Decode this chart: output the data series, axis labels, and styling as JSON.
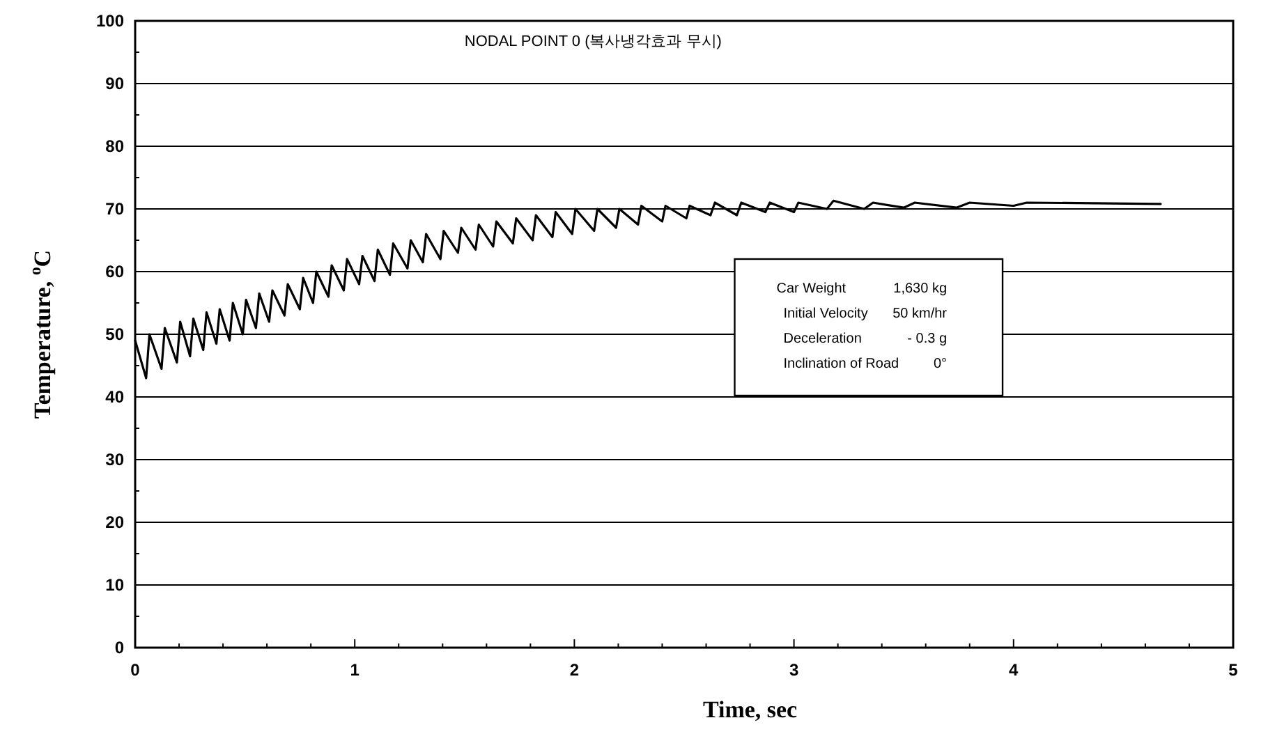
{
  "chart_data": {
    "type": "line",
    "title": "NODAL POINT 0 (복사냉각효과 무시)",
    "xlabel": "Time, sec",
    "ylabel": "Temperature, $^{o}$C",
    "xlim": [
      0,
      5
    ],
    "ylim": [
      0,
      100
    ],
    "xticks": [
      0,
      {
        "value": 0.2,
        "label": null
      },
      {
        "value": 0.4,
        "label": null
      },
      {
        "value": 0.6,
        "label": null
      },
      {
        "value": 0.8,
        "label": null
      },
      1,
      {
        "value": 1.2,
        "label": null
      },
      {
        "value": 1.4,
        "label": null
      },
      {
        "value": 1.6,
        "label": null
      },
      {
        "value": 1.8,
        "label": null
      },
      2,
      {
        "value": 2.2,
        "label": null
      },
      {
        "value": 2.4,
        "label": null
      },
      {
        "value": 2.6,
        "label": null
      },
      {
        "value": 2.8,
        "label": null
      },
      3,
      {
        "value": 3.2,
        "label": null
      },
      {
        "value": 3.4,
        "label": null
      },
      {
        "value": 3.6,
        "label": null
      },
      {
        "value": 3.8,
        "label": null
      },
      4,
      {
        "value": 4.2,
        "label": null
      },
      {
        "value": 4.4,
        "label": null
      },
      {
        "value": 4.6,
        "label": null
      },
      {
        "value": 4.8,
        "label": null
      },
      5
    ],
    "yticks": [
      0,
      {
        "value": 5,
        "label": null
      },
      10,
      {
        "value": 15,
        "label": null
      },
      20,
      {
        "value": 25,
        "label": null
      },
      30,
      {
        "value": 35,
        "label": null
      },
      40,
      {
        "value": 45,
        "label": null
      },
      50,
      {
        "value": 55,
        "label": null
      },
      60,
      {
        "value": 65,
        "label": null
      },
      70,
      {
        "value": 75,
        "label": null
      },
      80,
      {
        "value": 85,
        "label": null
      },
      90,
      {
        "value": 95,
        "label": null
      },
      100
    ],
    "grid": "y",
    "marker": "none",
    "line_style": "solid",
    "annotations": [
      "Car Weight",
      "1,630 kg",
      "Initial Velocity",
      "50 km/hr",
      "Deceleration",
      "- 0.3 g",
      "Inclination of Road",
      "0°"
    ],
    "series": [
      {
        "color": "#000000",
        "x": [
          0,
          0.05,
          0.065,
          0.12,
          0.135,
          0.19,
          0.205,
          0.25,
          0.265,
          0.31,
          0.325,
          0.37,
          0.385,
          0.43,
          0.445,
          0.49,
          0.505,
          0.55,
          0.565,
          0.61,
          0.625,
          0.68,
          0.695,
          0.75,
          0.765,
          0.81,
          0.825,
          0.88,
          0.895,
          0.95,
          0.965,
          1.02,
          1.035,
          1.09,
          1.105,
          1.16,
          1.175,
          1.24,
          1.255,
          1.31,
          1.325,
          1.39,
          1.405,
          1.47,
          1.485,
          1.55,
          1.565,
          1.63,
          1.645,
          1.72,
          1.735,
          1.81,
          1.825,
          1.9,
          1.915,
          1.99,
          2.005,
          2.09,
          2.105,
          2.19,
          2.205,
          2.29,
          2.305,
          2.4,
          2.415,
          2.51,
          2.525,
          2.62,
          2.64,
          2.74,
          2.76,
          2.87,
          2.89,
          3.0,
          3.02,
          3.15,
          3.18,
          3.32,
          3.36,
          3.5,
          3.55,
          3.74,
          3.8,
          4.0,
          4.06,
          4.67
        ],
        "values": [
          49,
          43,
          50,
          44.5,
          51,
          45.5,
          52,
          46.5,
          52.5,
          47.5,
          53.5,
          48.5,
          54,
          49,
          55,
          50,
          55.5,
          51,
          56.5,
          52,
          57,
          53,
          58,
          54,
          59,
          55,
          60,
          56,
          61,
          57,
          62,
          58,
          62.5,
          58.5,
          63.5,
          59.5,
          64.5,
          60.5,
          65,
          61.5,
          66,
          62,
          66.5,
          63,
          67,
          63.5,
          67.5,
          64,
          68,
          64.5,
          68.5,
          65,
          69,
          65.5,
          69.5,
          66,
          70,
          66.5,
          70,
          67,
          70,
          67.5,
          70.5,
          68,
          70.5,
          68.5,
          70.5,
          69,
          71,
          69,
          71,
          69.5,
          71,
          69.5,
          71,
          70,
          71.3,
          70,
          71,
          70.2,
          71,
          70.2,
          71,
          70.5,
          71,
          70.8
        ]
      }
    ]
  }
}
